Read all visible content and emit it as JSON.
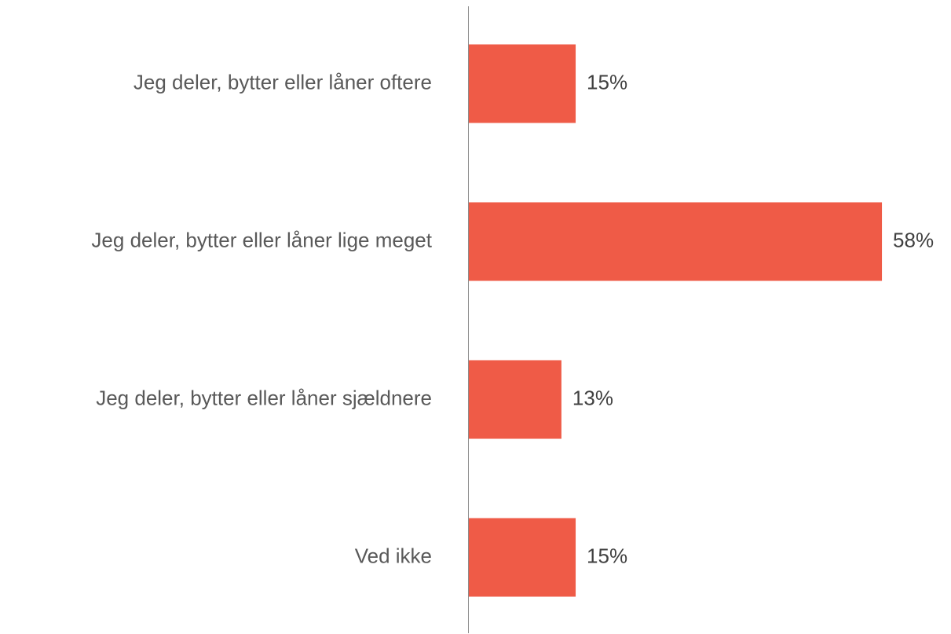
{
  "chart_data": {
    "type": "barh",
    "categories": [
      "Jeg deler, bytter eller låner oftere",
      "Jeg deler, bytter eller låner lige meget",
      "Jeg deler, bytter eller låner sjældnere",
      "Ved ikke"
    ],
    "values": [
      15,
      58,
      13,
      15
    ],
    "value_labels": [
      "15%",
      "58%",
      "13%",
      "15%"
    ],
    "color": "#ef5b47"
  }
}
